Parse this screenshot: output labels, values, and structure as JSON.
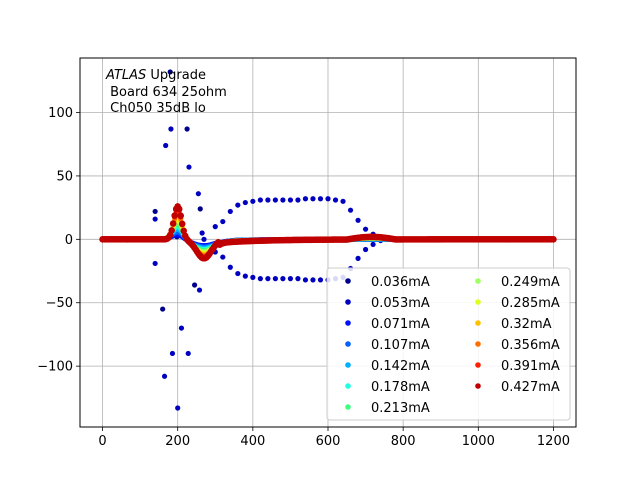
{
  "chart_data": {
    "type": "scatter",
    "annotation": {
      "italic_word": "ATLAS",
      "line1_rest": " Upgrade",
      "line2": " Board 634 25ohm",
      "line3": " Ch050 35dB lo"
    },
    "xlim": [
      -60,
      1260
    ],
    "ylim": [
      -148,
      143
    ],
    "x_ticks": [
      0,
      200,
      400,
      600,
      800,
      1000,
      1200
    ],
    "y_ticks": [
      -100,
      -50,
      0,
      50,
      100
    ],
    "x_tick_labels": [
      "0",
      "200",
      "400",
      "600",
      "800",
      "1000",
      "1200"
    ],
    "y_tick_labels": [
      "−100",
      "−50",
      "0",
      "50",
      "100"
    ],
    "grid": true,
    "legend_position": "lower-right",
    "legend_columns": 2,
    "series": [
      {
        "name": "0.036mA",
        "color": "#00008f"
      },
      {
        "name": "0.053mA",
        "color": "#0000c0"
      },
      {
        "name": "0.071mA",
        "color": "#0010ff"
      },
      {
        "name": "0.107mA",
        "color": "#0060ff"
      },
      {
        "name": "0.142mA",
        "color": "#00b0ff"
      },
      {
        "name": "0.178mA",
        "color": "#20ffdf"
      },
      {
        "name": "0.213mA",
        "color": "#40ff80"
      },
      {
        "name": "0.249mA",
        "color": "#a0ff60"
      },
      {
        "name": "0.285mA",
        "color": "#dfff20"
      },
      {
        "name": "0.32mA",
        "color": "#ffc000"
      },
      {
        "name": "0.356mA",
        "color": "#ff7000"
      },
      {
        "name": "0.391mA",
        "color": "#ff2000"
      },
      {
        "name": "0.427mA",
        "color": "#c00000"
      }
    ],
    "scattered_points": [
      [
        140,
        22
      ],
      [
        140,
        16
      ],
      [
        140,
        -19
      ],
      [
        160,
        -55
      ],
      [
        165,
        -108
      ],
      [
        168,
        74
      ],
      [
        180,
        132
      ],
      [
        182,
        87
      ],
      [
        186,
        -90
      ],
      [
        198,
        2
      ],
      [
        200,
        -133
      ],
      [
        210,
        -70
      ],
      [
        225,
        87
      ],
      [
        230,
        57
      ],
      [
        228,
        -90
      ],
      [
        245,
        -36
      ],
      [
        255,
        36
      ],
      [
        258,
        -40
      ],
      [
        260,
        24
      ],
      [
        265,
        5
      ],
      [
        270,
        0
      ]
    ],
    "envelope_points": [
      [
        300,
        10
      ],
      [
        300,
        -10
      ],
      [
        320,
        14
      ],
      [
        320,
        -14
      ],
      [
        340,
        22
      ],
      [
        340,
        -22
      ],
      [
        360,
        27
      ],
      [
        360,
        -27
      ],
      [
        380,
        29
      ],
      [
        380,
        -29
      ],
      [
        400,
        30
      ],
      [
        400,
        -30
      ],
      [
        420,
        31
      ],
      [
        420,
        -31
      ],
      [
        440,
        31
      ],
      [
        440,
        -31
      ],
      [
        460,
        31
      ],
      [
        460,
        -31
      ],
      [
        480,
        31
      ],
      [
        480,
        -31
      ],
      [
        500,
        31
      ],
      [
        500,
        -31
      ],
      [
        520,
        31
      ],
      [
        520,
        -31
      ],
      [
        540,
        32
      ],
      [
        540,
        -32
      ],
      [
        560,
        32
      ],
      [
        560,
        -32
      ],
      [
        580,
        32
      ],
      [
        580,
        -32
      ],
      [
        600,
        32
      ],
      [
        600,
        -32
      ],
      [
        620,
        31
      ],
      [
        620,
        -31
      ],
      [
        640,
        30
      ],
      [
        640,
        -30
      ],
      [
        660,
        23
      ],
      [
        660,
        -23
      ],
      [
        680,
        15
      ],
      [
        680,
        -15
      ],
      [
        700,
        8
      ],
      [
        700,
        -8
      ],
      [
        720,
        4
      ],
      [
        720,
        -4
      ],
      [
        740,
        1
      ],
      [
        740,
        -1
      ]
    ],
    "pulse_peak_x": 200,
    "pulse_min_x": 270,
    "x_range_data": [
      0,
      1200
    ]
  }
}
